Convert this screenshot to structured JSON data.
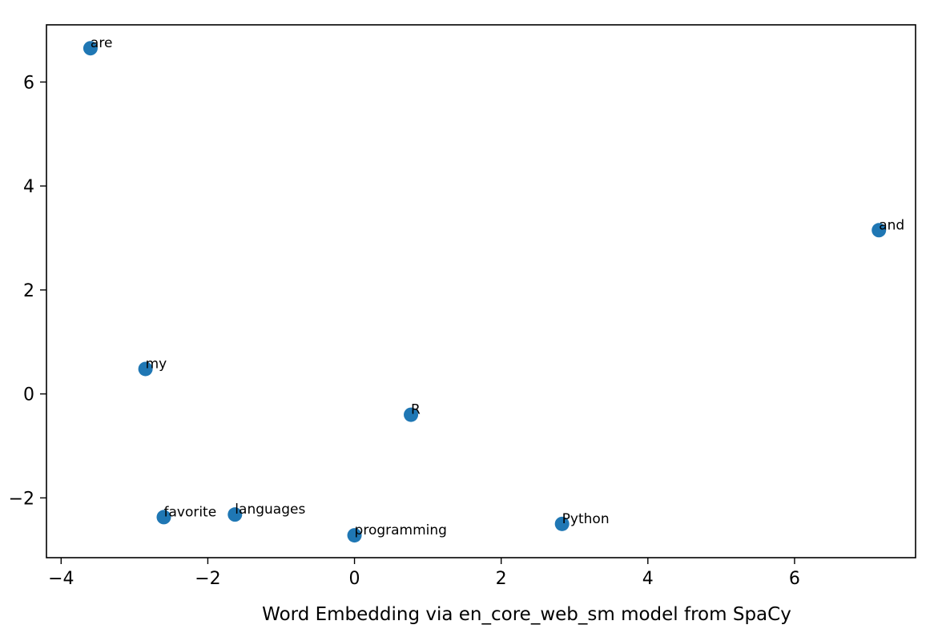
{
  "chart_data": {
    "type": "scatter",
    "title": "",
    "xlabel": "Word Embedding via en_core_web_sm model from SpaCy",
    "ylabel": "",
    "xlim": [
      -4.2,
      7.65
    ],
    "ylim": [
      -3.15,
      7.1
    ],
    "xticks": [
      -4,
      -2,
      0,
      2,
      4,
      6
    ],
    "yticks": [
      -2,
      0,
      2,
      4,
      6
    ],
    "xtick_labels": [
      "−4",
      "−2",
      "0",
      "2",
      "4",
      "6"
    ],
    "ytick_labels": [
      "−2",
      "0",
      "2",
      "4",
      "6"
    ],
    "grid": false,
    "marker_color": "#1f77b4",
    "points": [
      {
        "label": "are",
        "x": -3.6,
        "y": 6.65
      },
      {
        "label": "and",
        "x": 7.15,
        "y": 3.15
      },
      {
        "label": "my",
        "x": -2.85,
        "y": 0.48
      },
      {
        "label": "R",
        "x": 0.77,
        "y": -0.4
      },
      {
        "label": "favorite",
        "x": -2.6,
        "y": -2.37
      },
      {
        "label": "languages",
        "x": -1.63,
        "y": -2.32
      },
      {
        "label": "programming",
        "x": 0.0,
        "y": -2.72
      },
      {
        "label": "Python",
        "x": 2.83,
        "y": -2.5
      }
    ]
  }
}
